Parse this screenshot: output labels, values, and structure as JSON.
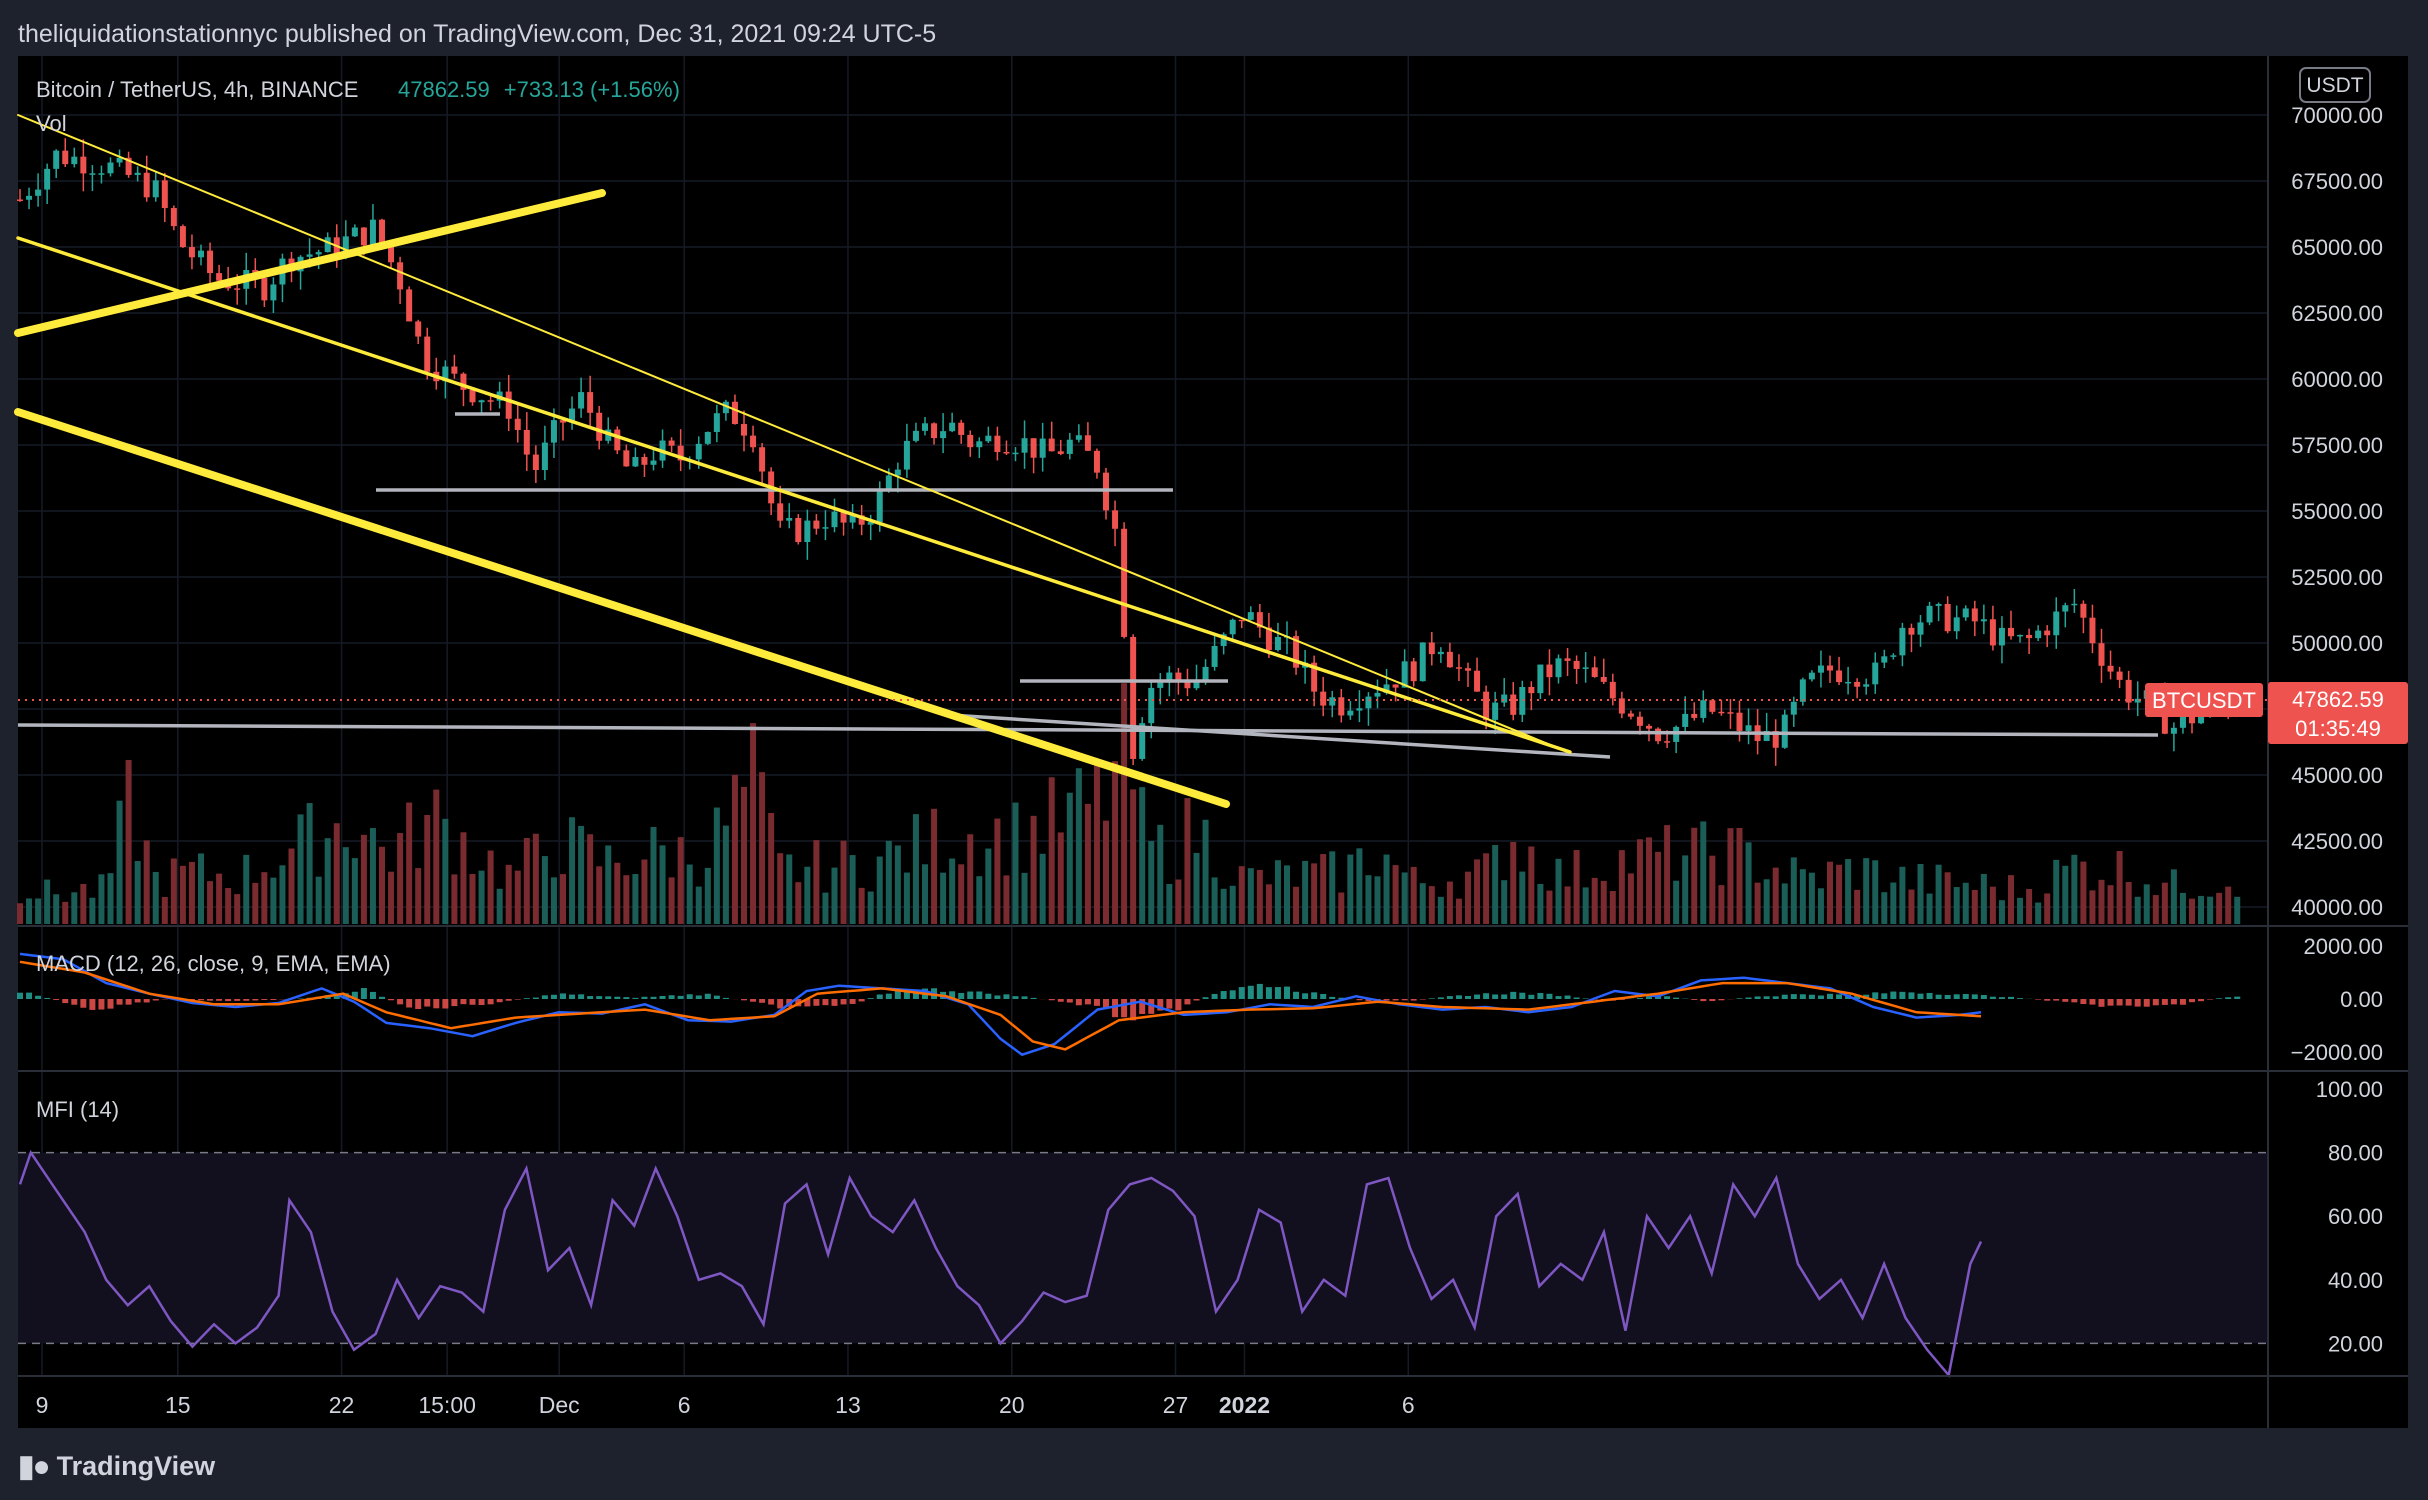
{
  "header": {
    "published": "theliquidationstationnyc published on TradingView.com, Dec 31, 2021 09:24 UTC-5"
  },
  "footer": {
    "brand": "TradingView",
    "logo_icon": "tv-logo-icon"
  },
  "chart_data": {
    "type": "candlestick",
    "symbol": "Bitcoin / TetherUS, 4h, BINANCE",
    "last_price": "47862.59",
    "change": "+733.13 (+1.56%)",
    "volume_label": "Vol",
    "currency_badge": "USDT",
    "price_label": {
      "symbol": "BTCUSDT",
      "price": "47862.59",
      "countdown": "01:35:49"
    },
    "price_axis": {
      "ticks": [
        "70000.00",
        "67500.00",
        "65000.00",
        "62500.00",
        "60000.00",
        "57500.00",
        "55000.00",
        "52500.00",
        "50000.00",
        "47500.00",
        "45000.00",
        "42500.00",
        "40000.00"
      ],
      "ylim": [
        40000,
        70000
      ]
    },
    "x_ticks": [
      "9",
      "15",
      "22",
      "15:00",
      "Dec",
      "6",
      "13",
      "20",
      "27",
      "2022",
      "6"
    ],
    "price_path": [
      [
        0,
        66800
      ],
      [
        1.5,
        68500
      ],
      [
        3.5,
        68100
      ],
      [
        5.5,
        67200
      ],
      [
        6.5,
        65200
      ],
      [
        8,
        63800
      ],
      [
        10,
        63500
      ],
      [
        11,
        64600
      ],
      [
        12.5,
        64900
      ],
      [
        14.5,
        65700
      ],
      [
        15.5,
        63800
      ],
      [
        16.5,
        60800
      ],
      [
        18,
        59800
      ],
      [
        20,
        58900
      ],
      [
        21,
        56500
      ],
      [
        22,
        58200
      ],
      [
        23,
        59300
      ],
      [
        24,
        57600
      ],
      [
        25,
        56400
      ],
      [
        26,
        57300
      ],
      [
        27,
        57000
      ],
      [
        28,
        58100
      ],
      [
        29,
        58800
      ],
      [
        30,
        57900
      ],
      [
        31,
        54200
      ],
      [
        32,
        54300
      ],
      [
        33,
        54800
      ],
      [
        34,
        54300
      ],
      [
        35,
        55200
      ],
      [
        36,
        57200
      ],
      [
        37,
        57900
      ],
      [
        38,
        58300
      ],
      [
        39,
        57500
      ],
      [
        40,
        57800
      ],
      [
        41,
        57600
      ],
      [
        42,
        57100
      ],
      [
        43,
        57600
      ],
      [
        44,
        56800
      ],
      [
        45,
        53500
      ],
      [
        45.3,
        47000
      ],
      [
        45.6,
        45500
      ],
      [
        46,
        48300
      ],
      [
        47,
        48700
      ],
      [
        48,
        48500
      ],
      [
        49,
        49800
      ],
      [
        50,
        51200
      ],
      [
        51,
        50300
      ],
      [
        52,
        49600
      ],
      [
        53,
        48100
      ],
      [
        54,
        47700
      ],
      [
        55,
        48200
      ],
      [
        56,
        48600
      ],
      [
        57,
        49100
      ],
      [
        58,
        50200
      ],
      [
        59,
        48700
      ],
      [
        60,
        47400
      ],
      [
        61,
        47600
      ],
      [
        62,
        48600
      ],
      [
        63,
        49200
      ],
      [
        64,
        48800
      ],
      [
        65,
        48000
      ],
      [
        66,
        47400
      ],
      [
        67,
        46600
      ],
      [
        68,
        46900
      ],
      [
        69,
        47500
      ],
      [
        70,
        47000
      ],
      [
        71,
        46400
      ],
      [
        72,
        46500
      ],
      [
        73,
        48400
      ],
      [
        74,
        49000
      ],
      [
        75,
        48900
      ],
      [
        76,
        48800
      ],
      [
        77,
        50800
      ],
      [
        78,
        51000
      ],
      [
        79,
        50900
      ],
      [
        80,
        50800
      ],
      [
        81,
        50100
      ],
      [
        82,
        50000
      ],
      [
        83,
        50800
      ],
      [
        84,
        51500
      ],
      [
        85,
        49700
      ],
      [
        86,
        48200
      ],
      [
        87,
        47700
      ],
      [
        88,
        46800
      ],
      [
        89,
        47300
      ],
      [
        90,
        47600
      ],
      [
        91,
        47862.59
      ]
    ],
    "volume_path": [
      [
        0,
        1100
      ],
      [
        1,
        900
      ],
      [
        3.5,
        1000
      ],
      [
        4.5,
        3600
      ],
      [
        5.5,
        1300
      ],
      [
        7,
        1500
      ],
      [
        9,
        1400
      ],
      [
        12.5,
        2700
      ],
      [
        13.5,
        3000
      ],
      [
        15,
        2100
      ],
      [
        17,
        3000
      ],
      [
        18,
        2500
      ],
      [
        20,
        1400
      ],
      [
        22,
        2400
      ],
      [
        24,
        1800
      ],
      [
        26,
        2100
      ],
      [
        28,
        2000
      ],
      [
        30,
        4200
      ],
      [
        31,
        1600
      ],
      [
        35,
        1800
      ],
      [
        38,
        2600
      ],
      [
        41,
        2600
      ],
      [
        44,
        3500
      ],
      [
        45.3,
        5000
      ],
      [
        46,
        2300
      ],
      [
        47,
        2100
      ],
      [
        48,
        2800
      ],
      [
        50,
        1300
      ],
      [
        54,
        1500
      ],
      [
        55.5,
        2100
      ],
      [
        57,
        1200
      ],
      [
        60,
        1500
      ],
      [
        61,
        2500
      ],
      [
        63,
        1400
      ],
      [
        65,
        1800
      ],
      [
        67,
        2000
      ],
      [
        70,
        2100
      ],
      [
        73,
        1300
      ],
      [
        75,
        1600
      ],
      [
        77,
        1300
      ],
      [
        79,
        1200
      ],
      [
        82,
        1000
      ],
      [
        84,
        1700
      ],
      [
        86,
        1600
      ],
      [
        88,
        1100
      ],
      [
        90,
        1300
      ],
      [
        91,
        1400
      ]
    ],
    "macd": {
      "label": "MACD (12, 26, close, 9, EMA, EMA)",
      "axis_ticks": [
        "2000.00",
        "0.00",
        "−2000.00"
      ],
      "ylim": [
        -2600,
        2600
      ],
      "macd_line": [
        [
          0,
          1700
        ],
        [
          2,
          1500
        ],
        [
          4,
          600
        ],
        [
          6,
          200
        ],
        [
          8,
          -150
        ],
        [
          10,
          -300
        ],
        [
          12,
          -150
        ],
        [
          14,
          400
        ],
        [
          15.5,
          -100
        ],
        [
          17,
          -900
        ],
        [
          19,
          -1100
        ],
        [
          21,
          -1400
        ],
        [
          23,
          -900
        ],
        [
          25,
          -500
        ],
        [
          27,
          -550
        ],
        [
          29,
          -200
        ],
        [
          31,
          -800
        ],
        [
          33,
          -850
        ],
        [
          35,
          -600
        ],
        [
          36.5,
          300
        ],
        [
          38,
          500
        ],
        [
          40,
          400
        ],
        [
          42,
          300
        ],
        [
          44,
          -200
        ],
        [
          45.5,
          -1500
        ],
        [
          46.5,
          -2100
        ],
        [
          48,
          -1700
        ],
        [
          50,
          -400
        ],
        [
          52,
          -100
        ],
        [
          54,
          -600
        ],
        [
          56,
          -500
        ],
        [
          58,
          -200
        ],
        [
          60,
          -300
        ],
        [
          62,
          100
        ],
        [
          64,
          -200
        ],
        [
          66,
          -400
        ],
        [
          68,
          -300
        ],
        [
          70,
          -500
        ],
        [
          72,
          -300
        ],
        [
          74,
          300
        ],
        [
          76,
          100
        ],
        [
          78,
          700
        ],
        [
          80,
          800
        ],
        [
          82,
          600
        ],
        [
          84,
          400
        ],
        [
          86,
          -300
        ],
        [
          88,
          -700
        ],
        [
          90,
          -600
        ],
        [
          91,
          -500
        ]
      ],
      "signal_line": [
        [
          0,
          1400
        ],
        [
          3,
          1000
        ],
        [
          6,
          200
        ],
        [
          9,
          -200
        ],
        [
          12,
          -200
        ],
        [
          15,
          200
        ],
        [
          17,
          -500
        ],
        [
          20,
          -1100
        ],
        [
          23,
          -700
        ],
        [
          26,
          -550
        ],
        [
          29,
          -400
        ],
        [
          32,
          -800
        ],
        [
          35,
          -650
        ],
        [
          37,
          200
        ],
        [
          40,
          400
        ],
        [
          43,
          100
        ],
        [
          45.5,
          -600
        ],
        [
          47,
          -1600
        ],
        [
          48.5,
          -1900
        ],
        [
          51,
          -800
        ],
        [
          54,
          -500
        ],
        [
          57,
          -400
        ],
        [
          60,
          -350
        ],
        [
          63,
          -100
        ],
        [
          66,
          -300
        ],
        [
          70,
          -400
        ],
        [
          73,
          -100
        ],
        [
          76,
          200
        ],
        [
          79,
          600
        ],
        [
          82,
          600
        ],
        [
          85,
          200
        ],
        [
          88,
          -500
        ],
        [
          91,
          -650
        ]
      ],
      "histogram": [
        [
          0,
          300
        ],
        [
          3,
          -400
        ],
        [
          6,
          0
        ],
        [
          9,
          -100
        ],
        [
          12,
          50
        ],
        [
          14,
          400
        ],
        [
          16,
          -400
        ],
        [
          19,
          -200
        ],
        [
          22,
          200
        ],
        [
          25,
          50
        ],
        [
          28,
          200
        ],
        [
          31,
          -300
        ],
        [
          34,
          -200
        ],
        [
          36,
          400
        ],
        [
          38,
          350
        ],
        [
          41,
          100
        ],
        [
          44,
          -300
        ],
        [
          45.5,
          -900
        ],
        [
          47,
          -500
        ],
        [
          49,
          300
        ],
        [
          51,
          600
        ],
        [
          53,
          200
        ],
        [
          55,
          -100
        ],
        [
          57,
          -50
        ],
        [
          59,
          150
        ],
        [
          61,
          250
        ],
        [
          63,
          150
        ],
        [
          65,
          -100
        ],
        [
          67,
          150
        ],
        [
          69,
          -100
        ],
        [
          71,
          100
        ],
        [
          73,
          200
        ],
        [
          75,
          150
        ],
        [
          77,
          300
        ],
        [
          79,
          200
        ],
        [
          81,
          100
        ],
        [
          84,
          -150
        ],
        [
          86,
          -350
        ],
        [
          88,
          -250
        ],
        [
          90,
          50
        ],
        [
          91,
          150
        ]
      ]
    },
    "mfi": {
      "label": "MFI (14)",
      "axis_ticks": [
        "100.00",
        "80.00",
        "60.00",
        "40.00",
        "20.00"
      ],
      "ylim": [
        0,
        100
      ],
      "bands": [
        20,
        80
      ],
      "series": [
        [
          0,
          70
        ],
        [
          0.5,
          80
        ],
        [
          1.5,
          70
        ],
        [
          3,
          55
        ],
        [
          4,
          40
        ],
        [
          5,
          32
        ],
        [
          6,
          38
        ],
        [
          7,
          27
        ],
        [
          8,
          19
        ],
        [
          9,
          26
        ],
        [
          10,
          20
        ],
        [
          11,
          25
        ],
        [
          12,
          35
        ],
        [
          12.5,
          65
        ],
        [
          13.5,
          55
        ],
        [
          14.5,
          30
        ],
        [
          15.5,
          18
        ],
        [
          16.5,
          23
        ],
        [
          17.5,
          40
        ],
        [
          18.5,
          28
        ],
        [
          19.5,
          38
        ],
        [
          20.5,
          36
        ],
        [
          21.5,
          30
        ],
        [
          22.5,
          62
        ],
        [
          23.5,
          75
        ],
        [
          24.5,
          43
        ],
        [
          25.5,
          50
        ],
        [
          26.5,
          32
        ],
        [
          27.5,
          65
        ],
        [
          28.5,
          57
        ],
        [
          29.5,
          75
        ],
        [
          30.5,
          60
        ],
        [
          31.5,
          40
        ],
        [
          32.5,
          42
        ],
        [
          33.5,
          38
        ],
        [
          34.5,
          26
        ],
        [
          35.5,
          64
        ],
        [
          36.5,
          70
        ],
        [
          37.5,
          48
        ],
        [
          38.5,
          72
        ],
        [
          39.5,
          60
        ],
        [
          40.5,
          55
        ],
        [
          41.5,
          65
        ],
        [
          42.5,
          50
        ],
        [
          43.5,
          38
        ],
        [
          44.5,
          32
        ],
        [
          45.5,
          20
        ],
        [
          46.5,
          27
        ],
        [
          47.5,
          36
        ],
        [
          48.5,
          33
        ],
        [
          49.5,
          35
        ],
        [
          50.5,
          62
        ],
        [
          51.5,
          70
        ],
        [
          52.5,
          72
        ],
        [
          53.5,
          68
        ],
        [
          54.5,
          60
        ],
        [
          55.5,
          30
        ],
        [
          56.5,
          40
        ],
        [
          57.5,
          62
        ],
        [
          58.5,
          58
        ],
        [
          59.5,
          30
        ],
        [
          60.5,
          40
        ],
        [
          61.5,
          35
        ],
        [
          62.5,
          70
        ],
        [
          63.5,
          72
        ],
        [
          64.5,
          50
        ],
        [
          65.5,
          34
        ],
        [
          66.5,
          40
        ],
        [
          67.5,
          25
        ],
        [
          68.5,
          60
        ],
        [
          69.5,
          67
        ],
        [
          70.5,
          38
        ],
        [
          71.5,
          45
        ],
        [
          72.5,
          40
        ],
        [
          73.5,
          55
        ],
        [
          74.5,
          24
        ],
        [
          75.5,
          60
        ],
        [
          76.5,
          50
        ],
        [
          77.5,
          60
        ],
        [
          78.5,
          42
        ],
        [
          79.5,
          70
        ],
        [
          80.5,
          60
        ],
        [
          81.5,
          72
        ],
        [
          82.5,
          45
        ],
        [
          83.5,
          34
        ],
        [
          84.5,
          40
        ],
        [
          85.5,
          28
        ],
        [
          86.5,
          45
        ],
        [
          87.5,
          28
        ],
        [
          88.5,
          18
        ],
        [
          89.5,
          10
        ],
        [
          90.5,
          45
        ],
        [
          91,
          52
        ]
      ]
    }
  }
}
